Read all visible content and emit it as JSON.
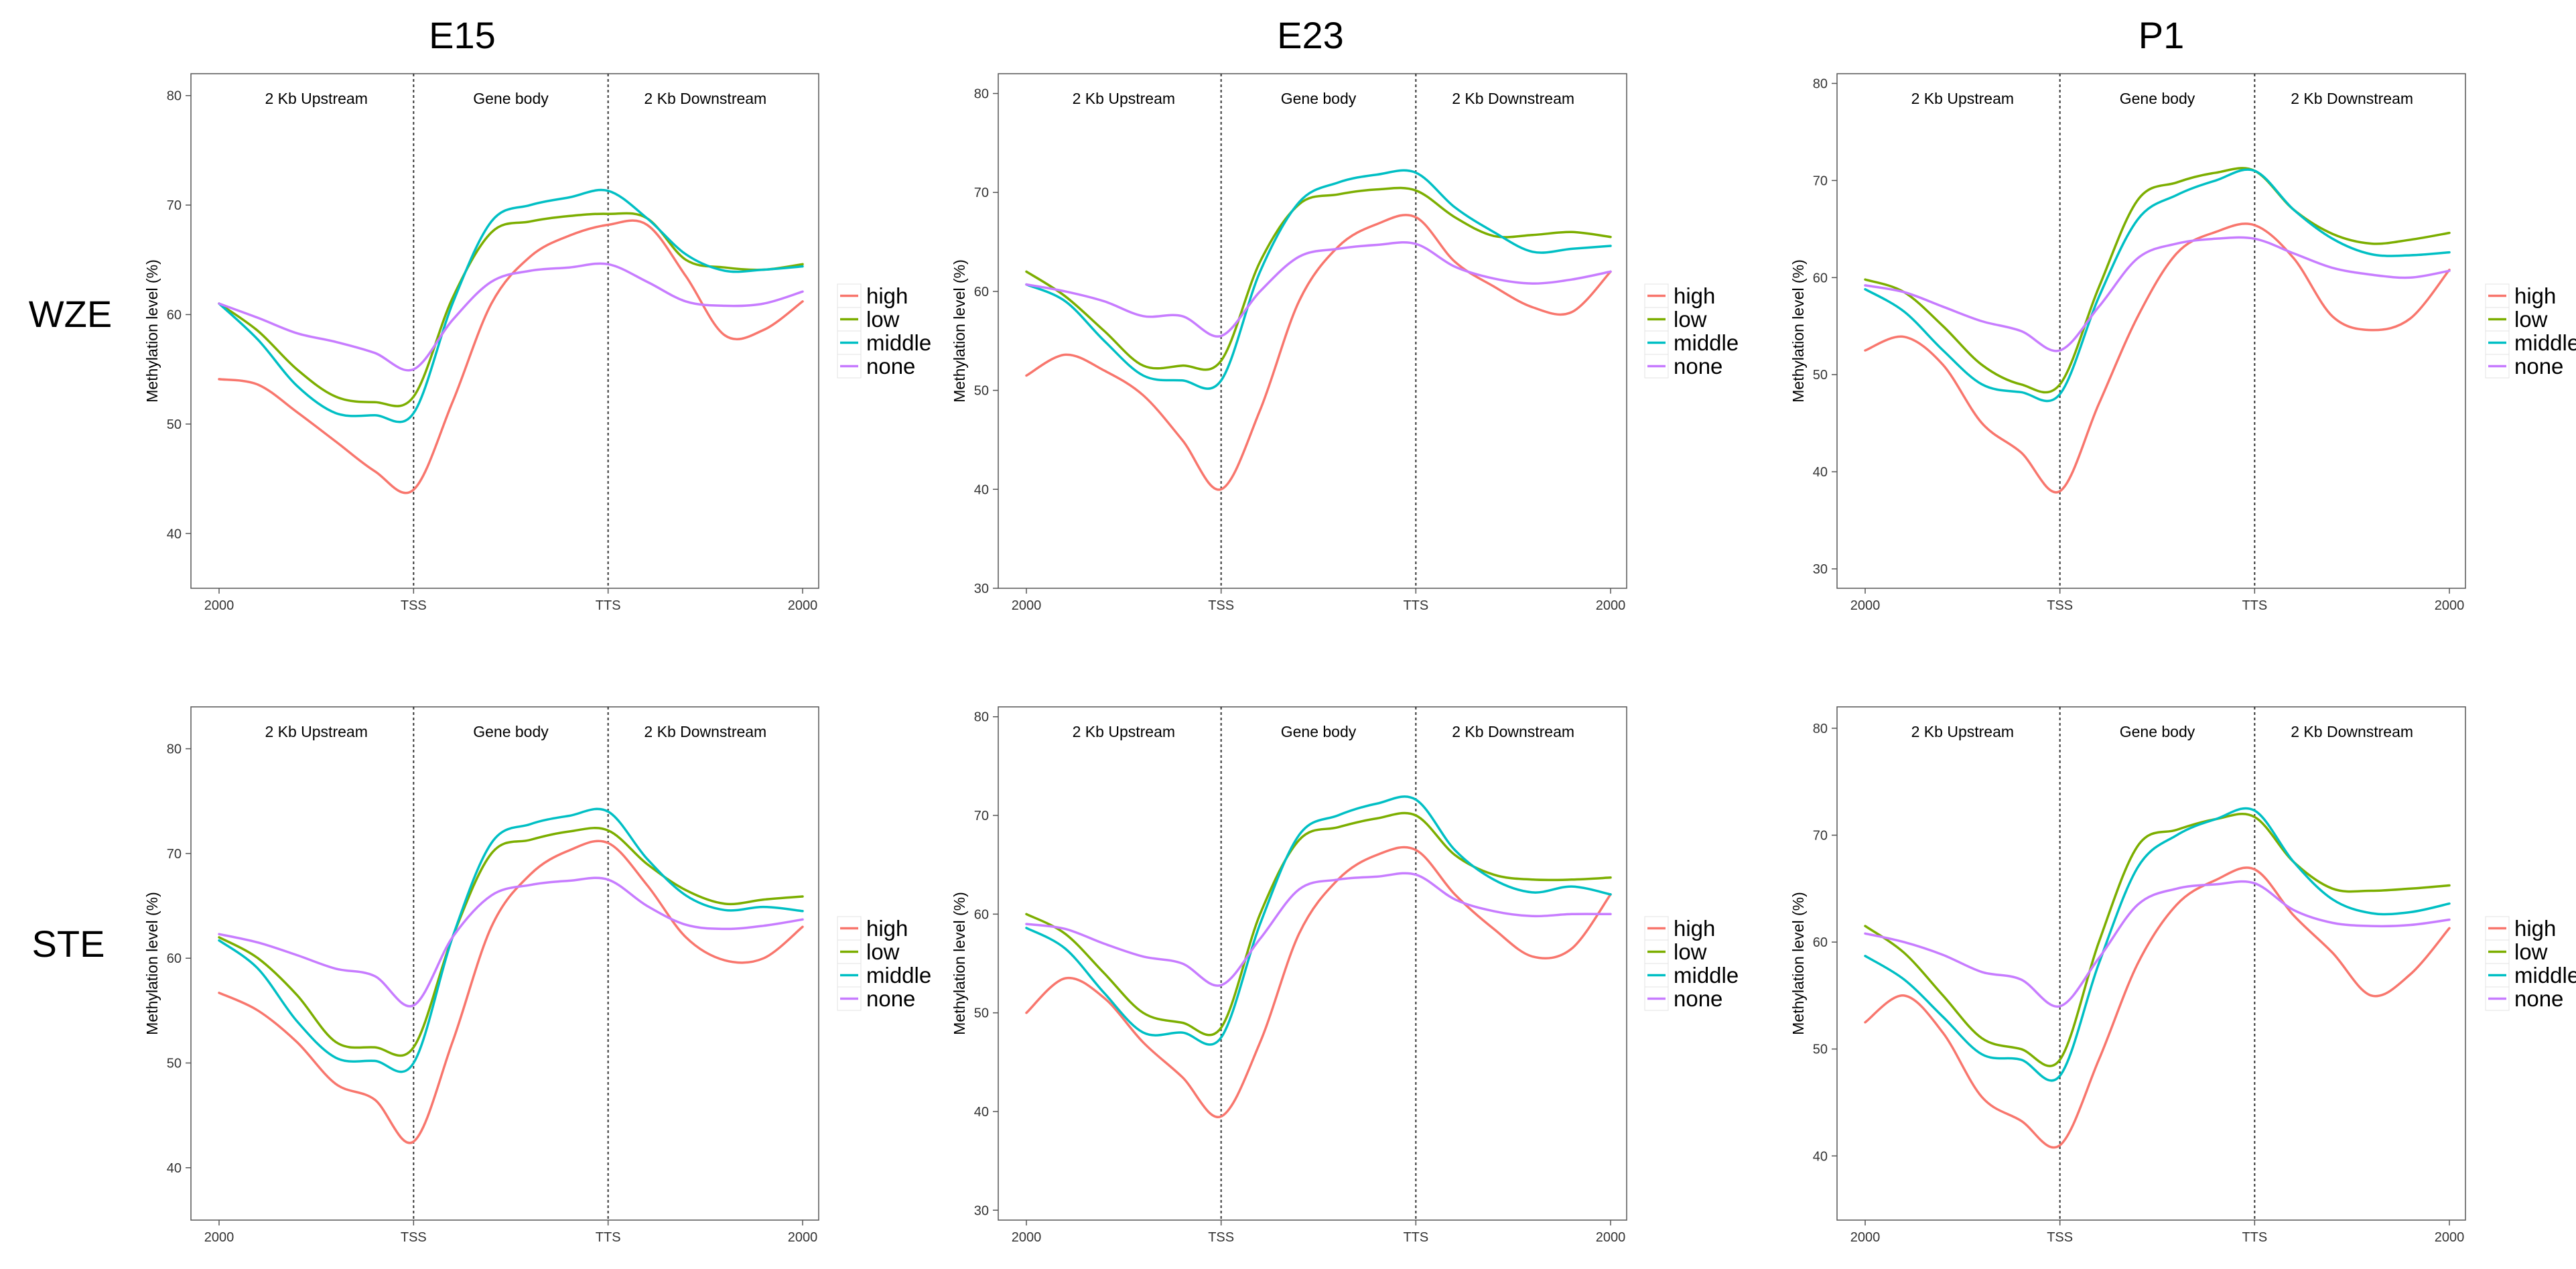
{
  "figure": {
    "col_titles": [
      "E15",
      "E23",
      "P1"
    ],
    "row_titles": [
      "WZE",
      "STE"
    ],
    "colors": {
      "high": "#F8766D",
      "low": "#7CAE00",
      "middle": "#00BFC4",
      "none": "#C77CFF",
      "frame": "#555555",
      "divider": "#333333"
    }
  },
  "chart_data": [
    {
      "type": "line",
      "title": "E15",
      "row": "WZE",
      "ylabel": "Methylation level (%)",
      "ylim": [
        35,
        82
      ],
      "yticks": [
        40,
        50,
        60,
        70,
        80
      ],
      "xticklabels": [
        "2000",
        "TSS",
        "TTS",
        "2000"
      ],
      "regions": [
        "2 Kb Upstream",
        "Gene body",
        "2 Kb Downstream"
      ],
      "x": [
        0,
        0.2,
        0.4,
        0.6,
        0.8,
        1,
        1.2,
        1.4,
        1.6,
        1.8,
        2,
        2.2,
        2.4,
        2.6,
        2.8,
        3
      ],
      "series": [
        {
          "name": "high",
          "values": [
            54.1,
            53.6,
            51.1,
            48.4,
            45.7,
            44.0,
            52.0,
            61.0,
            65.3,
            67.2,
            68.2,
            68.2,
            63.5,
            58.1,
            58.6,
            61.2
          ]
        },
        {
          "name": "low",
          "values": [
            61.0,
            58.5,
            55.0,
            52.5,
            52.0,
            52.5,
            61.5,
            67.5,
            68.5,
            69.0,
            69.2,
            68.8,
            65.0,
            64.3,
            64.1,
            64.6
          ]
        },
        {
          "name": "middle",
          "values": [
            61.0,
            57.7,
            53.5,
            51.0,
            50.8,
            51.0,
            61.0,
            68.5,
            70.0,
            70.7,
            71.3,
            68.8,
            65.5,
            64.0,
            64.1,
            64.4
          ]
        },
        {
          "name": "none",
          "values": [
            61.0,
            59.7,
            58.3,
            57.5,
            56.5,
            55.0,
            59.5,
            63.0,
            64.0,
            64.3,
            64.6,
            63.0,
            61.2,
            60.8,
            61.0,
            62.1
          ]
        }
      ]
    },
    {
      "type": "line",
      "title": "E23",
      "row": "WZE",
      "ylabel": "Methylation level (%)",
      "ylim": [
        30,
        82
      ],
      "yticks": [
        30,
        40,
        50,
        60,
        70,
        80
      ],
      "xticklabels": [
        "2000",
        "TSS",
        "TTS",
        "2000"
      ],
      "regions": [
        "2 Kb Upstream",
        "Gene body",
        "2 Kb Downstream"
      ],
      "x": [
        0,
        0.2,
        0.4,
        0.6,
        0.8,
        1,
        1.2,
        1.4,
        1.6,
        1.8,
        2,
        2.2,
        2.4,
        2.6,
        2.8,
        3
      ],
      "series": [
        {
          "name": "high",
          "values": [
            51.5,
            53.6,
            52.0,
            49.5,
            45.0,
            40.0,
            48.0,
            59.0,
            64.5,
            66.8,
            67.5,
            63.0,
            60.5,
            58.4,
            57.9,
            62.0
          ]
        },
        {
          "name": "low",
          "values": [
            62.0,
            59.5,
            56.0,
            52.5,
            52.5,
            53.0,
            63.0,
            68.8,
            69.8,
            70.3,
            70.2,
            67.5,
            65.6,
            65.7,
            66.0,
            65.5
          ]
        },
        {
          "name": "middle",
          "values": [
            60.7,
            59.0,
            55.0,
            51.5,
            51.0,
            51.0,
            62.0,
            69.0,
            71.0,
            71.8,
            72.0,
            68.5,
            66.0,
            64.0,
            64.3,
            64.6
          ]
        },
        {
          "name": "none",
          "values": [
            60.7,
            60.0,
            59.0,
            57.5,
            57.5,
            55.5,
            60.0,
            63.5,
            64.3,
            64.7,
            64.8,
            62.5,
            61.3,
            60.8,
            61.2,
            62.0
          ]
        }
      ]
    },
    {
      "type": "line",
      "title": "P1",
      "row": "WZE",
      "ylabel": "Methylation level (%)",
      "ylim": [
        28,
        81
      ],
      "yticks": [
        30,
        40,
        50,
        60,
        70,
        80
      ],
      "xticklabels": [
        "2000",
        "TSS",
        "TTS",
        "2000"
      ],
      "regions": [
        "2 Kb Upstream",
        "Gene body",
        "2 Kb Downstream"
      ],
      "x": [
        0,
        0.2,
        0.4,
        0.6,
        0.8,
        1,
        1.2,
        1.4,
        1.6,
        1.8,
        2,
        2.2,
        2.4,
        2.6,
        2.8,
        3
      ],
      "series": [
        {
          "name": "high",
          "values": [
            52.5,
            53.9,
            51.0,
            45.0,
            42.0,
            38.0,
            47.0,
            56.0,
            62.5,
            64.7,
            65.4,
            62.0,
            56.0,
            54.6,
            55.8,
            60.8
          ]
        },
        {
          "name": "low",
          "values": [
            59.8,
            58.5,
            55.0,
            51.0,
            49.0,
            49.0,
            59.0,
            68.0,
            69.8,
            70.8,
            71.0,
            67.0,
            64.5,
            63.5,
            63.9,
            64.6
          ]
        },
        {
          "name": "middle",
          "values": [
            58.8,
            56.5,
            52.5,
            49.0,
            48.2,
            48.0,
            58.0,
            66.0,
            68.5,
            70.0,
            71.0,
            67.0,
            64.0,
            62.4,
            62.3,
            62.6
          ]
        },
        {
          "name": "none",
          "values": [
            59.2,
            58.5,
            57.0,
            55.5,
            54.5,
            52.5,
            57.0,
            62.0,
            63.5,
            64.0,
            64.0,
            62.5,
            61.0,
            60.3,
            60.0,
            60.7
          ]
        }
      ]
    },
    {
      "type": "line",
      "title": "E15",
      "row": "STE",
      "ylabel": "Methylation level (%)",
      "ylim": [
        35,
        84
      ],
      "yticks": [
        40,
        50,
        60,
        70,
        80
      ],
      "xticklabels": [
        "2000",
        "TSS",
        "TTS",
        "2000"
      ],
      "regions": [
        "2 Kb Upstream",
        "Gene body",
        "2 Kb Downstream"
      ],
      "x": [
        0,
        0.2,
        0.4,
        0.6,
        0.8,
        1,
        1.2,
        1.4,
        1.6,
        1.8,
        2,
        2.2,
        2.4,
        2.6,
        2.8,
        3
      ],
      "series": [
        {
          "name": "high",
          "values": [
            56.7,
            55.0,
            52.0,
            48.0,
            46.5,
            42.5,
            52.0,
            63.0,
            68.0,
            70.3,
            71.0,
            67.0,
            62.0,
            59.8,
            60.0,
            63.0
          ]
        },
        {
          "name": "low",
          "values": [
            62.0,
            60.0,
            56.5,
            52.0,
            51.5,
            51.5,
            62.0,
            70.0,
            71.3,
            72.1,
            72.2,
            69.0,
            66.5,
            65.2,
            65.6,
            65.9
          ]
        },
        {
          "name": "middle",
          "values": [
            61.7,
            59.0,
            54.0,
            50.5,
            50.2,
            50.0,
            62.0,
            71.0,
            72.8,
            73.6,
            74.0,
            69.5,
            66.0,
            64.6,
            64.9,
            64.5
          ]
        },
        {
          "name": "none",
          "values": [
            62.3,
            61.5,
            60.3,
            59.0,
            58.3,
            55.5,
            62.0,
            66.0,
            67.0,
            67.4,
            67.5,
            65.0,
            63.2,
            62.8,
            63.1,
            63.7
          ]
        }
      ]
    },
    {
      "type": "line",
      "title": "E23",
      "row": "STE",
      "ylabel": "Methylation level (%)",
      "ylim": [
        29,
        81
      ],
      "yticks": [
        30,
        40,
        50,
        60,
        70,
        80
      ],
      "xticklabels": [
        "2000",
        "TSS",
        "TTS",
        "2000"
      ],
      "regions": [
        "2 Kb Upstream",
        "Gene body",
        "2 Kb Downstream"
      ],
      "x": [
        0,
        0.2,
        0.4,
        0.6,
        0.8,
        1,
        1.2,
        1.4,
        1.6,
        1.8,
        2,
        2.2,
        2.4,
        2.6,
        2.8,
        3
      ],
      "series": [
        {
          "name": "high",
          "values": [
            50.0,
            53.5,
            51.5,
            47.0,
            43.5,
            39.5,
            47.0,
            58.0,
            63.5,
            66.0,
            66.5,
            62.0,
            58.5,
            55.7,
            56.5,
            62.0
          ]
        },
        {
          "name": "low",
          "values": [
            60.0,
            58.0,
            54.0,
            50.0,
            49.0,
            48.5,
            60.0,
            67.5,
            68.8,
            69.7,
            70.0,
            66.0,
            64.0,
            63.5,
            63.5,
            63.7
          ]
        },
        {
          "name": "middle",
          "values": [
            58.6,
            56.5,
            52.0,
            48.0,
            48.0,
            47.5,
            59.0,
            68.0,
            70.0,
            71.2,
            71.6,
            66.5,
            63.5,
            62.2,
            62.8,
            62.0
          ]
        },
        {
          "name": "none",
          "values": [
            59.0,
            58.5,
            57.0,
            55.7,
            55.0,
            52.8,
            57.5,
            62.5,
            63.5,
            63.8,
            64.0,
            61.5,
            60.3,
            59.8,
            60.0,
            60.0
          ]
        }
      ]
    },
    {
      "type": "line",
      "title": "P1",
      "row": "STE",
      "ylabel": "Methylation level (%)",
      "ylim": [
        34,
        82
      ],
      "yticks": [
        40,
        50,
        60,
        70,
        80
      ],
      "xticklabels": [
        "2000",
        "TSS",
        "TTS",
        "2000"
      ],
      "regions": [
        "2 Kb Upstream",
        "Gene body",
        "2 Kb Downstream"
      ],
      "x": [
        0,
        0.2,
        0.4,
        0.6,
        0.8,
        1,
        1.2,
        1.4,
        1.6,
        1.8,
        2,
        2.2,
        2.4,
        2.6,
        2.8,
        3
      ],
      "series": [
        {
          "name": "high",
          "values": [
            52.5,
            55.0,
            51.5,
            45.5,
            43.3,
            41.0,
            49.0,
            58.0,
            63.5,
            65.8,
            66.8,
            62.5,
            59.0,
            55.0,
            57.0,
            61.3
          ]
        },
        {
          "name": "low",
          "values": [
            61.5,
            59.0,
            55.0,
            51.0,
            50.0,
            49.0,
            60.0,
            69.0,
            70.5,
            71.5,
            71.7,
            67.5,
            65.0,
            64.8,
            65.0,
            65.3
          ]
        },
        {
          "name": "middle",
          "values": [
            58.7,
            56.5,
            53.0,
            49.5,
            49.0,
            47.5,
            58.0,
            67.0,
            70.0,
            71.5,
            72.3,
            67.5,
            64.0,
            62.7,
            62.8,
            63.6
          ]
        },
        {
          "name": "none",
          "values": [
            60.8,
            60.0,
            58.8,
            57.2,
            56.5,
            54.0,
            58.5,
            63.5,
            65.0,
            65.4,
            65.5,
            63.0,
            61.8,
            61.5,
            61.6,
            62.1
          ]
        }
      ]
    }
  ]
}
